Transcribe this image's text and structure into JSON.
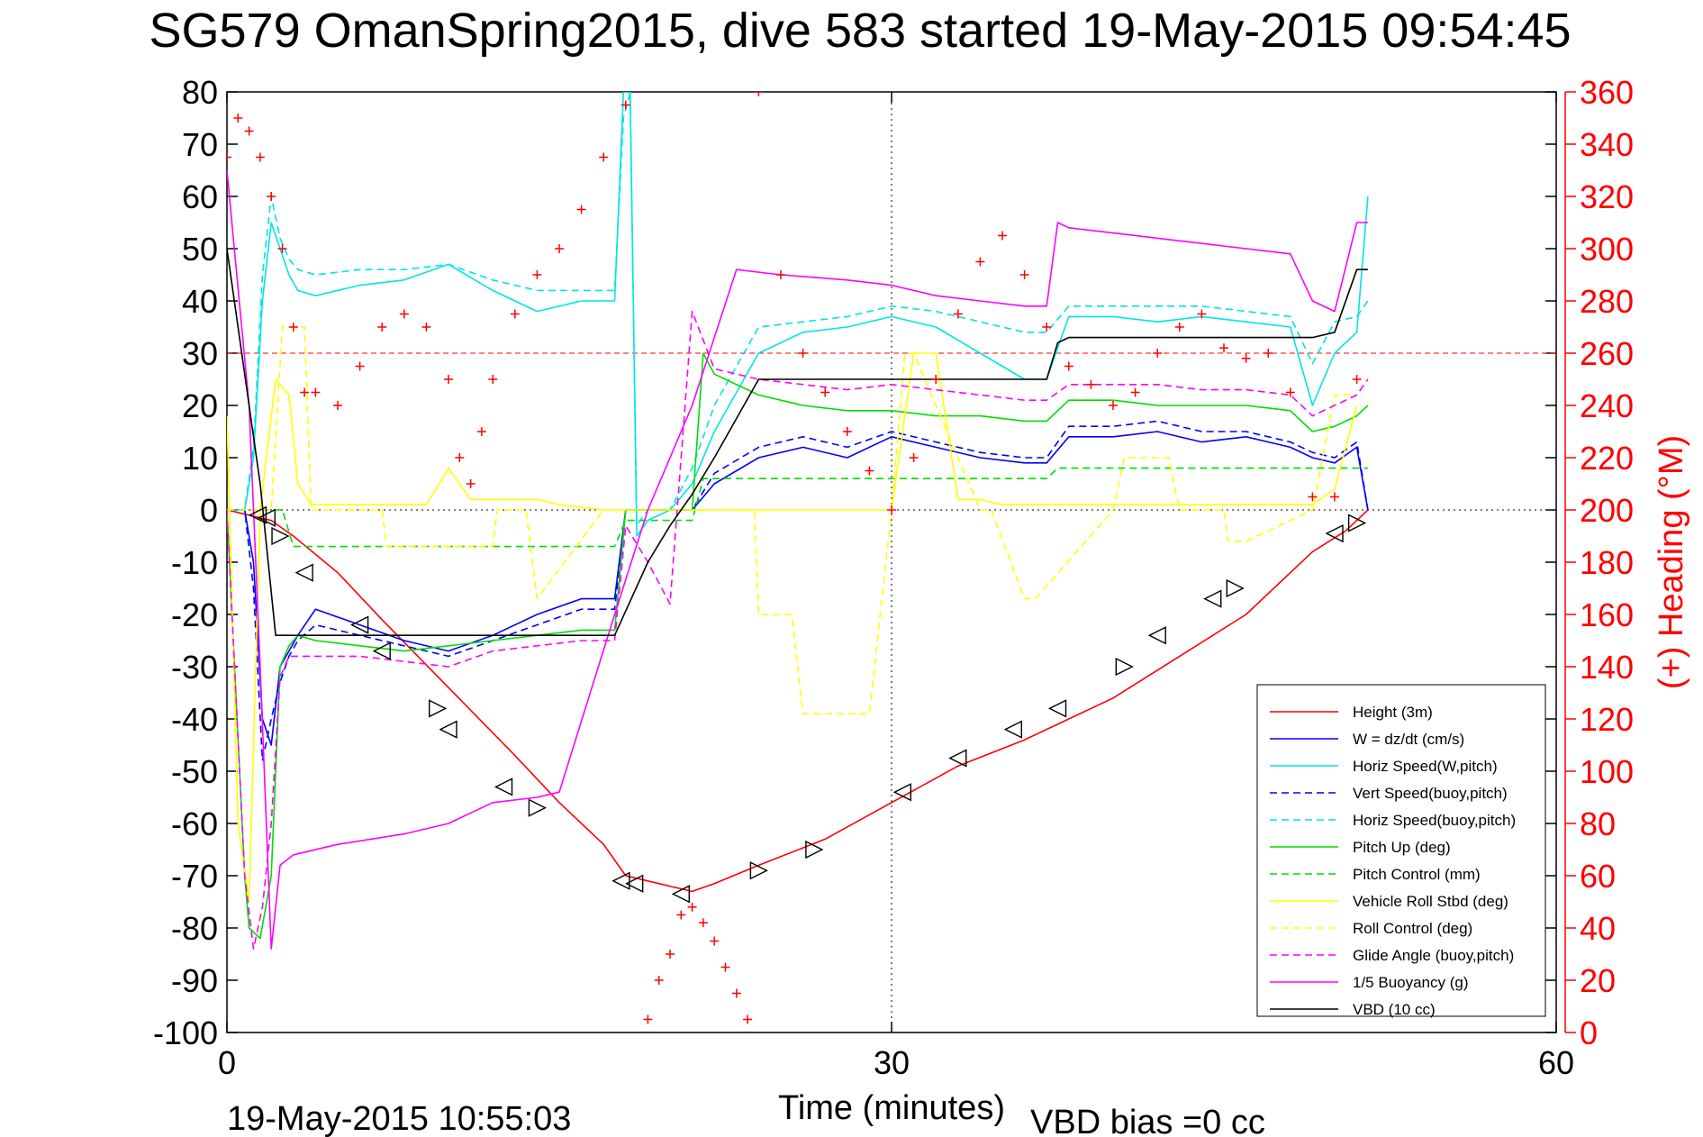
{
  "page": {
    "title": "SG579 OmanSpring2015, dive 583 started 19-May-2015 09:54:45",
    "footer_timestamp": "19-May-2015 10:55:03",
    "footer_vbd_bias": "VBD bias =0 cc"
  },
  "chart_data": {
    "type": "line",
    "title": "SG579 OmanSpring2015, dive 583 started 19-May-2015 09:54:45",
    "xlabel": "Time (minutes)",
    "ylabel": "",
    "y2label": "(+) Heading (°M)",
    "xlim": [
      0,
      60
    ],
    "ylim": [
      -100,
      80
    ],
    "y2lim": [
      0,
      360
    ],
    "x_ticks": [
      "0",
      "30",
      "60"
    ],
    "y_ticks": [
      "80",
      "70",
      "60",
      "50",
      "40",
      "30",
      "20",
      "10",
      "0",
      "-10",
      "-20",
      "-30",
      "-40",
      "-50",
      "-60",
      "-70",
      "-80",
      "-90",
      "-100"
    ],
    "y2_ticks": [
      "360",
      "340",
      "320",
      "300",
      "280",
      "260",
      "240",
      "220",
      "200",
      "180",
      "160",
      "140",
      "120",
      "100",
      "80",
      "60",
      "40",
      "20",
      "0"
    ],
    "grid": "dotted at x=30 and y=0",
    "legend_position": "bottom-right",
    "series": [
      {
        "name": "Height (3m)",
        "color": "#ff0000",
        "style": "solid",
        "x": [
          0,
          1,
          2,
          3,
          5,
          7,
          10,
          13,
          15,
          17,
          18,
          19,
          20,
          21,
          22,
          24,
          27,
          30,
          33,
          36,
          38,
          40,
          43,
          46,
          49,
          50.5,
          51.5
        ],
        "y": [
          0,
          -1,
          -2,
          -5,
          -12,
          -21,
          -34,
          -47,
          -56,
          -64,
          -70,
          -71,
          -72,
          -73,
          -71.5,
          -68,
          -63,
          -56,
          -49,
          -44,
          -40,
          -36,
          -28,
          -20,
          -8,
          -4,
          0
        ]
      },
      {
        "name": "W = dz/dt (cm/s)",
        "color": "#0000ff",
        "style": "solid",
        "x": [
          0,
          0.8,
          1.2,
          1.6,
          2.0,
          2.4,
          2.8,
          3.2,
          4,
          6,
          8,
          10,
          12,
          14,
          16,
          17.5,
          18,
          19,
          20,
          21,
          22,
          24,
          26,
          28,
          30,
          32,
          34,
          36,
          37,
          38,
          40,
          42,
          44,
          46,
          48,
          49,
          50,
          51,
          51.5
        ],
        "y": [
          0,
          0,
          -10,
          -40,
          -45,
          -30,
          -27,
          -24,
          -19,
          -22,
          -25,
          -27,
          -24,
          -20,
          -17,
          -17,
          0,
          0,
          0,
          0,
          5,
          10,
          12,
          10,
          14,
          12,
          10,
          9,
          9,
          14,
          14,
          15,
          13,
          14,
          12,
          10,
          9,
          12,
          0
        ]
      },
      {
        "name": "Horiz Speed(W,pitch)",
        "color": "#00e5e5",
        "style": "solid",
        "x": [
          0,
          0.8,
          1.2,
          1.6,
          2.0,
          2.4,
          2.8,
          3.2,
          4,
          6,
          8,
          10,
          12,
          14,
          16,
          17.5,
          17.9,
          18.2,
          18.5,
          19,
          20,
          21,
          22,
          24,
          26,
          28,
          30,
          32,
          34,
          36,
          37,
          38,
          40,
          42,
          44,
          46,
          48,
          49,
          50,
          51,
          51.5
        ],
        "y": [
          0,
          0,
          10,
          40,
          55,
          50,
          45,
          42,
          41,
          43,
          44,
          47,
          42,
          38,
          40,
          40,
          80,
          80,
          -5,
          -2,
          0,
          5,
          15,
          30,
          34,
          35,
          37,
          35,
          30,
          25,
          25,
          37,
          37,
          36,
          37,
          36,
          35,
          20,
          30,
          34,
          60
        ]
      },
      {
        "name": "Vert Speed(buoy,pitch)",
        "color": "#0000ff",
        "style": "dashed",
        "x": [
          0,
          0.8,
          1.2,
          1.6,
          2.0,
          2.4,
          2.8,
          3.2,
          4,
          6,
          8,
          10,
          12,
          14,
          16,
          17.5,
          18,
          19,
          20,
          21,
          22,
          24,
          26,
          28,
          30,
          32,
          34,
          36,
          37,
          38,
          40,
          42,
          44,
          46,
          48,
          49,
          50,
          51,
          51.5
        ],
        "y": [
          0,
          0,
          -15,
          -48,
          -40,
          -33,
          -28,
          -25,
          -22,
          -24,
          -26,
          -28,
          -25,
          -22,
          -19,
          -19,
          0,
          0,
          0,
          0,
          7,
          12,
          14,
          12,
          15,
          13,
          11,
          10,
          10,
          16,
          16,
          17,
          15,
          15,
          13,
          11,
          10,
          13,
          0
        ]
      },
      {
        "name": "Horiz Speed(buoy,pitch)",
        "color": "#00e5e5",
        "style": "dashed",
        "x": [
          0,
          0.8,
          1.2,
          1.6,
          2.0,
          2.4,
          2.8,
          3.2,
          4,
          6,
          8,
          10,
          12,
          14,
          16,
          17.5,
          17.9,
          18.2,
          18.5,
          19,
          20,
          21,
          22,
          24,
          26,
          28,
          30,
          32,
          34,
          36,
          37,
          38,
          40,
          42,
          44,
          46,
          48,
          49,
          50,
          51,
          51.5
        ],
        "y": [
          0,
          0,
          12,
          45,
          60,
          52,
          48,
          46,
          45,
          46,
          46,
          47,
          44,
          42,
          42,
          42,
          75,
          80,
          -3,
          0,
          0,
          8,
          20,
          35,
          36,
          37,
          39,
          38,
          36,
          34,
          34,
          39,
          39,
          39,
          39,
          38,
          37,
          28,
          36,
          37,
          40
        ]
      },
      {
        "name": "Pitch Up (deg)",
        "color": "#00dd00",
        "style": "solid",
        "x": [
          0,
          0.8,
          1.0,
          1.5,
          2.0,
          2.4,
          2.8,
          3.2,
          4,
          6,
          8,
          10,
          12,
          14,
          16,
          17.5,
          18,
          19,
          20,
          21,
          21.5,
          22,
          24,
          26,
          28,
          30,
          32,
          34,
          36,
          37,
          38,
          40,
          42,
          44,
          46,
          48,
          49,
          50,
          51,
          51.5
        ],
        "y": [
          0,
          -70,
          -80,
          -82,
          -70,
          -30,
          -26,
          -24,
          -25,
          -26,
          -27,
          -26,
          -25,
          -24,
          -23,
          -23,
          0,
          0,
          0,
          0,
          30,
          26,
          22,
          20,
          19,
          19,
          18,
          18,
          17,
          17,
          21,
          21,
          20,
          20,
          20,
          19,
          15,
          16,
          18,
          20
        ]
      },
      {
        "name": "Pitch Control (mm)",
        "color": "#00dd00",
        "style": "dashed",
        "x": [
          0,
          2.5,
          3,
          10,
          17.5,
          18,
          21,
          21.5,
          30,
          37,
          37.5,
          48,
          50,
          51.5
        ],
        "y": [
          0,
          0,
          -7,
          -7,
          -7,
          -2,
          -2,
          6,
          6,
          6,
          8,
          8,
          8,
          8
        ]
      },
      {
        "name": "Vehicle Roll Stbd (deg)",
        "color": "#ffff00",
        "style": "solid",
        "x": [
          0,
          0.5,
          1,
          1.5,
          2.2,
          2.8,
          3.2,
          3.8,
          5,
          7,
          9,
          10,
          11,
          12,
          13,
          14,
          15,
          17,
          20,
          24,
          28,
          30,
          31,
          32,
          33,
          34,
          35,
          37,
          39,
          41,
          43,
          45,
          47,
          49,
          50,
          51
        ],
        "y": [
          18,
          -60,
          -75,
          0,
          25,
          22,
          5,
          1,
          1,
          1,
          1,
          8,
          2,
          2,
          2,
          2,
          1,
          0,
          0,
          0,
          0,
          0,
          30,
          30,
          2,
          2,
          1,
          1,
          1,
          1,
          1,
          1,
          1,
          1,
          4,
          20
        ]
      },
      {
        "name": "Roll Control (deg)",
        "color": "#ffff00",
        "style": "dashed",
        "x": [
          0,
          2,
          2.5,
          3.5,
          3.8,
          6,
          7,
          7.2,
          12,
          12.2,
          13.5,
          14,
          17,
          21,
          23.8,
          24,
          25.5,
          26,
          29,
          30,
          30.6,
          31,
          34,
          34.5,
          36,
          36.5,
          40,
          40.5,
          42.5,
          43,
          45,
          45.2,
          46,
          49,
          50,
          51
        ],
        "y": [
          0,
          0,
          35,
          35,
          0,
          0,
          0,
          -7,
          -7,
          0,
          0,
          -17,
          0,
          0,
          0,
          -20,
          -20,
          -39,
          -39,
          0,
          30,
          30,
          0,
          0,
          -17,
          -17,
          0,
          10,
          10,
          0,
          0,
          -6,
          -6,
          0,
          22,
          22
        ]
      },
      {
        "name": "Glide Angle (buoy,pitch)",
        "color": "#ff00ff",
        "style": "dashed",
        "x": [
          0,
          0.8,
          1.2,
          1.6,
          2.0,
          2.4,
          2.8,
          3.2,
          4,
          6,
          8,
          10,
          12,
          14,
          16,
          17.5,
          18,
          19,
          20,
          21,
          22,
          24,
          26,
          28,
          30,
          32,
          34,
          36,
          37,
          38,
          40,
          42,
          44,
          46,
          48,
          49,
          50,
          51,
          51.5
        ],
        "y": [
          0,
          -70,
          -84,
          -76,
          -60,
          -32,
          -28,
          -28,
          -28,
          -28,
          -29,
          -30,
          -27,
          -26,
          -25,
          -25,
          -3,
          -10,
          -18,
          38,
          27,
          25,
          24,
          23,
          24,
          23,
          22,
          21,
          21,
          24,
          24,
          24,
          23,
          23,
          22,
          18,
          20,
          22,
          25
        ]
      },
      {
        "name": "1/5 Buoyancy (g)",
        "color": "#ff00ff",
        "style": "solid",
        "x": [
          0,
          1,
          1.5,
          2,
          2.4,
          3,
          5,
          8,
          10,
          12,
          14,
          15,
          17.5,
          19,
          21,
          23,
          25,
          28,
          30,
          32,
          34,
          36,
          37,
          37.5,
          38,
          40,
          42,
          44,
          46,
          48,
          49,
          50,
          51,
          51.5
        ],
        "y": [
          65,
          20,
          -30,
          -84,
          -68,
          -66,
          -64,
          -62,
          -60,
          -56,
          -55,
          -54,
          -20,
          0,
          20,
          46,
          45,
          44,
          43,
          41,
          40,
          39,
          39,
          55,
          54,
          53,
          52,
          51,
          50,
          49,
          40,
          38,
          55,
          55
        ]
      },
      {
        "name": "VBD (10 cc)",
        "color": "#000000",
        "style": "solid",
        "x": [
          0,
          1.5,
          2.2,
          3,
          6,
          10,
          14,
          16,
          17.5,
          19,
          20,
          21,
          22,
          24,
          26,
          28,
          30,
          32,
          34,
          36,
          37,
          37.5,
          38,
          40,
          42,
          44,
          46,
          48,
          49,
          50,
          51,
          51.5
        ],
        "y": [
          50,
          5,
          -24,
          -24,
          -24,
          -24,
          -24,
          -24,
          -24,
          -10,
          -3,
          3,
          10,
          25,
          25,
          25,
          25,
          25,
          25,
          25,
          25,
          32,
          33,
          33,
          33,
          33,
          33,
          33,
          33,
          34,
          46,
          46
        ]
      }
    ],
    "heading_series": {
      "name": "(+) Heading (°M)",
      "color": "#ff0000",
      "marker": "+",
      "axis": "right",
      "x": [
        0,
        0.5,
        1,
        1.5,
        2,
        2.5,
        3,
        3.5,
        4,
        5,
        6,
        7,
        8,
        9,
        10,
        10.5,
        11,
        11.5,
        12,
        13,
        14,
        15,
        16,
        17,
        18,
        19,
        19.5,
        20,
        20.5,
        21,
        21.5,
        22,
        22.5,
        23,
        23.5,
        24,
        25,
        26,
        27,
        28,
        29,
        30,
        31,
        32,
        33,
        34,
        35,
        36,
        37,
        38,
        39,
        40,
        41,
        42,
        43,
        44,
        45,
        46,
        47,
        48,
        49,
        50,
        51
      ],
      "y": [
        335,
        350,
        345,
        335,
        320,
        300,
        270,
        245,
        245,
        240,
        255,
        270,
        275,
        270,
        250,
        220,
        210,
        230,
        250,
        275,
        290,
        300,
        315,
        335,
        355,
        5,
        20,
        30,
        45,
        48,
        42,
        35,
        25,
        15,
        5,
        360,
        290,
        260,
        245,
        230,
        215,
        200,
        220,
        250,
        275,
        295,
        305,
        290,
        270,
        255,
        248,
        240,
        245,
        260,
        270,
        275,
        262,
        258,
        260,
        245,
        205,
        205,
        250
      ]
    },
    "heading_reference": {
      "value": 260,
      "color": "#ff0000",
      "style": "dashed",
      "axis": "right"
    },
    "triangle_markers": [
      {
        "x": 1.4,
        "y": -1,
        "dir": "left"
      },
      {
        "x": 1.8,
        "y": -1.5,
        "dir": "left"
      },
      {
        "x": 2.4,
        "y": -5,
        "dir": "right"
      },
      {
        "x": 3.5,
        "y": -12,
        "dir": "left"
      },
      {
        "x": 6,
        "y": -22,
        "dir": "left"
      },
      {
        "x": 7,
        "y": -27,
        "dir": "left"
      },
      {
        "x": 9.5,
        "y": -38,
        "dir": "right"
      },
      {
        "x": 10,
        "y": -42,
        "dir": "left"
      },
      {
        "x": 12.5,
        "y": -53,
        "dir": "left"
      },
      {
        "x": 14,
        "y": -57,
        "dir": "right"
      },
      {
        "x": 17.8,
        "y": -71,
        "dir": "left"
      },
      {
        "x": 18.4,
        "y": -71.5,
        "dir": "left"
      },
      {
        "x": 20.5,
        "y": -73.5,
        "dir": "left"
      },
      {
        "x": 24,
        "y": -69,
        "dir": "right"
      },
      {
        "x": 26.5,
        "y": -65,
        "dir": "right"
      },
      {
        "x": 30.5,
        "y": -54,
        "dir": "left"
      },
      {
        "x": 33,
        "y": -47.5,
        "dir": "left"
      },
      {
        "x": 35.5,
        "y": -42,
        "dir": "left"
      },
      {
        "x": 37.5,
        "y": -38,
        "dir": "left"
      },
      {
        "x": 40.5,
        "y": -30,
        "dir": "right"
      },
      {
        "x": 42,
        "y": -24,
        "dir": "left"
      },
      {
        "x": 44.5,
        "y": -17,
        "dir": "left"
      },
      {
        "x": 45.5,
        "y": -15,
        "dir": "right"
      },
      {
        "x": 50,
        "y": -4.5,
        "dir": "left"
      },
      {
        "x": 51,
        "y": -2.5,
        "dir": "right"
      }
    ]
  }
}
